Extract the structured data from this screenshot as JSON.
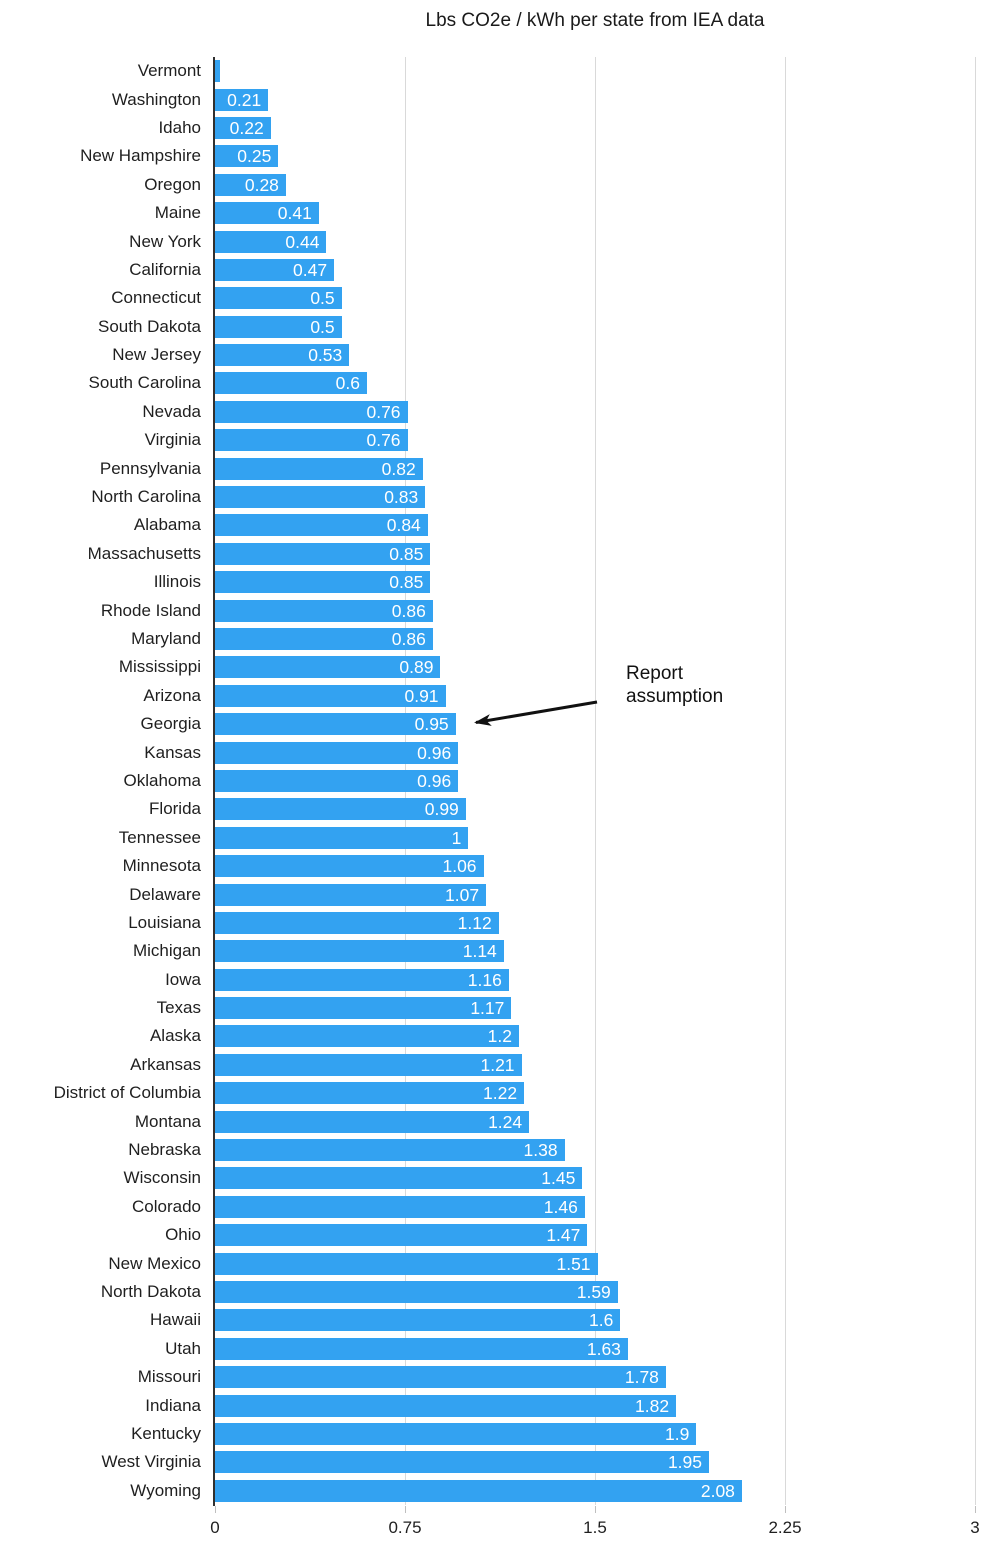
{
  "chart_data": {
    "type": "bar",
    "orientation": "horizontal",
    "title": "Lbs CO2e / kWh per state from IEA data",
    "xlabel": "",
    "ylabel": "",
    "xlim": [
      0,
      3
    ],
    "x_ticks": [
      0,
      0.75,
      1.5,
      2.25,
      3
    ],
    "x_tick_labels": [
      "0",
      "0.75",
      "1.5",
      "2.25",
      "3"
    ],
    "grid": "vertical-gridlines-on",
    "legend": "none",
    "bar_color": "#33a2f1",
    "value_label_color": "#ffffff",
    "annotation": {
      "text": "Report assumption",
      "target_state": "Georgia",
      "target_value": 0.95
    },
    "states": [
      {
        "name": "Vermont",
        "value": 0.02,
        "label": ""
      },
      {
        "name": "Washington",
        "value": 0.21,
        "label": "0.21"
      },
      {
        "name": "Idaho",
        "value": 0.22,
        "label": "0.22"
      },
      {
        "name": "New Hampshire",
        "value": 0.25,
        "label": "0.25"
      },
      {
        "name": "Oregon",
        "value": 0.28,
        "label": "0.28"
      },
      {
        "name": "Maine",
        "value": 0.41,
        "label": "0.41"
      },
      {
        "name": "New York",
        "value": 0.44,
        "label": "0.44"
      },
      {
        "name": "California",
        "value": 0.47,
        "label": "0.47"
      },
      {
        "name": "Connecticut",
        "value": 0.5,
        "label": "0.5"
      },
      {
        "name": "South Dakota",
        "value": 0.5,
        "label": "0.5"
      },
      {
        "name": "New Jersey",
        "value": 0.53,
        "label": "0.53"
      },
      {
        "name": "South Carolina",
        "value": 0.6,
        "label": "0.6"
      },
      {
        "name": "Nevada",
        "value": 0.76,
        "label": "0.76"
      },
      {
        "name": "Virginia",
        "value": 0.76,
        "label": "0.76"
      },
      {
        "name": "Pennsylvania",
        "value": 0.82,
        "label": "0.82"
      },
      {
        "name": "North Carolina",
        "value": 0.83,
        "label": "0.83"
      },
      {
        "name": "Alabama",
        "value": 0.84,
        "label": "0.84"
      },
      {
        "name": "Massachusetts",
        "value": 0.85,
        "label": "0.85"
      },
      {
        "name": "Illinois",
        "value": 0.85,
        "label": "0.85"
      },
      {
        "name": "Rhode Island",
        "value": 0.86,
        "label": "0.86"
      },
      {
        "name": "Maryland",
        "value": 0.86,
        "label": "0.86"
      },
      {
        "name": "Mississippi",
        "value": 0.89,
        "label": "0.89"
      },
      {
        "name": "Arizona",
        "value": 0.91,
        "label": "0.91"
      },
      {
        "name": "Georgia",
        "value": 0.95,
        "label": "0.95"
      },
      {
        "name": "Kansas",
        "value": 0.96,
        "label": "0.96"
      },
      {
        "name": "Oklahoma",
        "value": 0.96,
        "label": "0.96"
      },
      {
        "name": "Florida",
        "value": 0.99,
        "label": "0.99"
      },
      {
        "name": "Tennessee",
        "value": 1.0,
        "label": "1"
      },
      {
        "name": "Minnesota",
        "value": 1.06,
        "label": "1.06"
      },
      {
        "name": "Delaware",
        "value": 1.07,
        "label": "1.07"
      },
      {
        "name": "Louisiana",
        "value": 1.12,
        "label": "1.12"
      },
      {
        "name": "Michigan",
        "value": 1.14,
        "label": "1.14"
      },
      {
        "name": "Iowa",
        "value": 1.16,
        "label": "1.16"
      },
      {
        "name": "Texas",
        "value": 1.17,
        "label": "1.17"
      },
      {
        "name": "Alaska",
        "value": 1.2,
        "label": "1.2"
      },
      {
        "name": "Arkansas",
        "value": 1.21,
        "label": "1.21"
      },
      {
        "name": "District of Columbia",
        "value": 1.22,
        "label": "1.22"
      },
      {
        "name": "Montana",
        "value": 1.24,
        "label": "1.24"
      },
      {
        "name": "Nebraska",
        "value": 1.38,
        "label": "1.38"
      },
      {
        "name": "Wisconsin",
        "value": 1.45,
        "label": "1.45"
      },
      {
        "name": "Colorado",
        "value": 1.46,
        "label": "1.46"
      },
      {
        "name": "Ohio",
        "value": 1.47,
        "label": "1.47"
      },
      {
        "name": "New Mexico",
        "value": 1.51,
        "label": "1.51"
      },
      {
        "name": "North Dakota",
        "value": 1.59,
        "label": "1.59"
      },
      {
        "name": "Hawaii",
        "value": 1.6,
        "label": "1.6"
      },
      {
        "name": "Utah",
        "value": 1.63,
        "label": "1.63"
      },
      {
        "name": "Missouri",
        "value": 1.78,
        "label": "1.78"
      },
      {
        "name": "Indiana",
        "value": 1.82,
        "label": "1.82"
      },
      {
        "name": "Kentucky",
        "value": 1.9,
        "label": "1.9"
      },
      {
        "name": "West Virginia",
        "value": 1.95,
        "label": "1.95"
      },
      {
        "name": "Wyoming",
        "value": 2.08,
        "label": "2.08"
      }
    ]
  }
}
